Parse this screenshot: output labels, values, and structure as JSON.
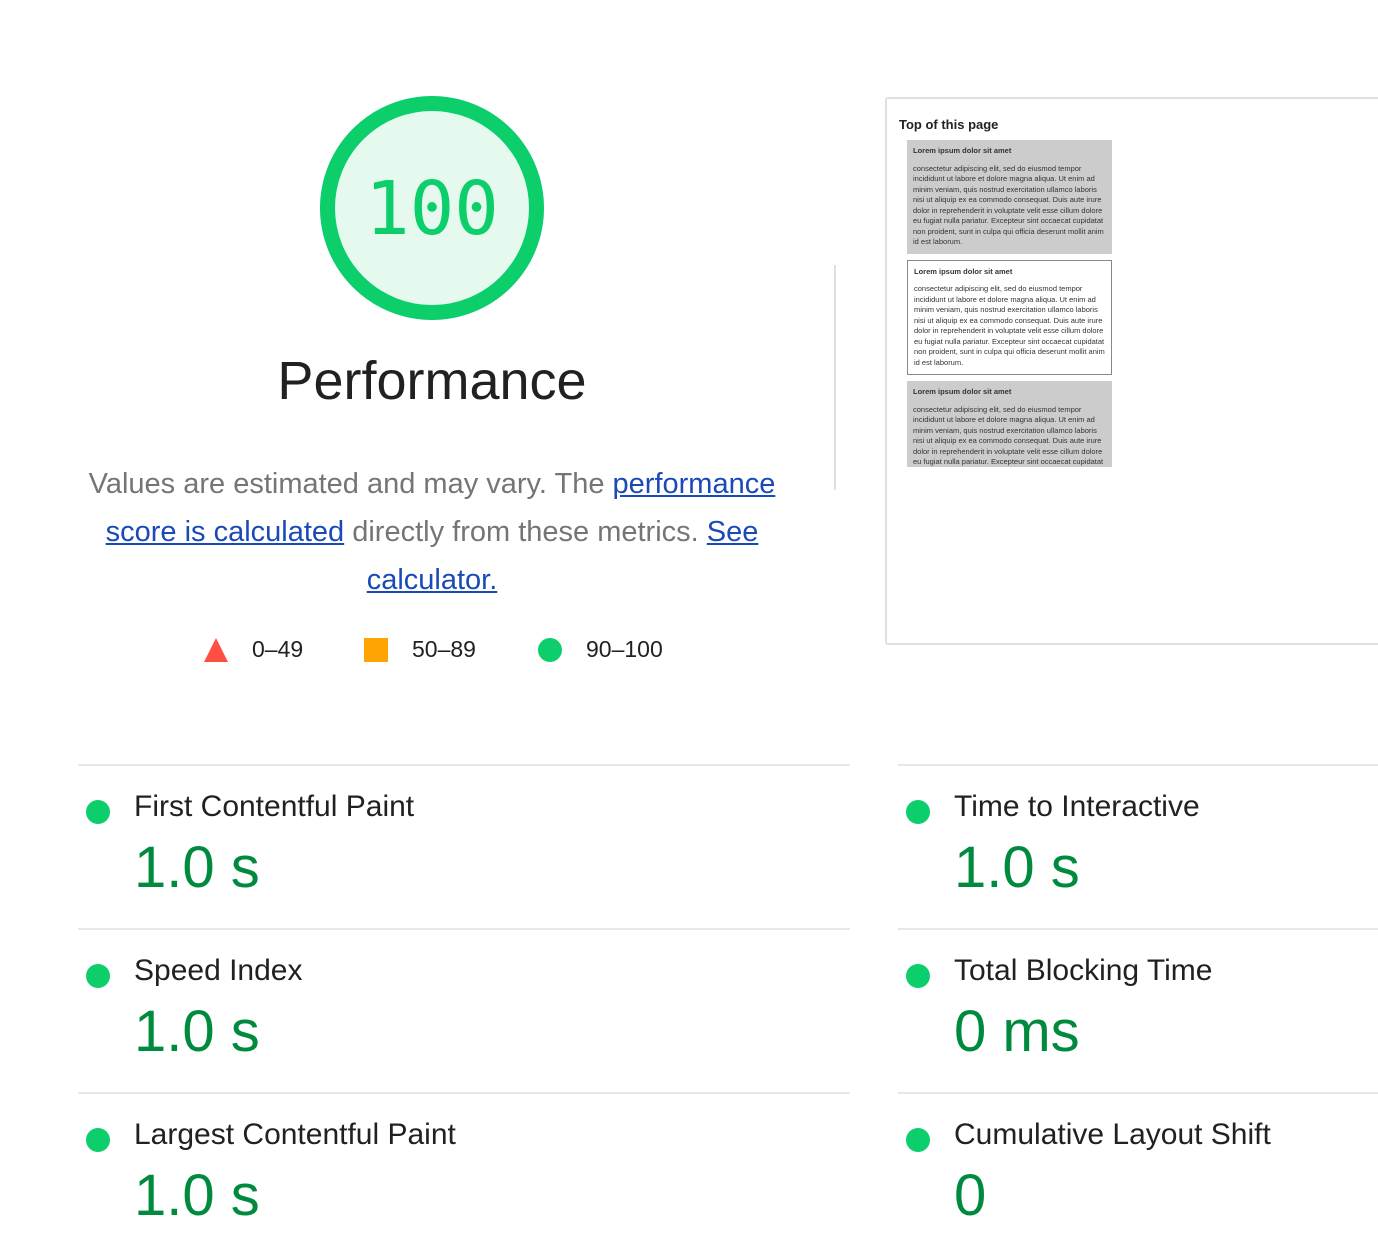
{
  "gauge": {
    "score": "100",
    "title": "Performance",
    "color": "#0cce6b"
  },
  "description": {
    "part1": "Values are estimated and may vary. The ",
    "link1": "performance score is calculated",
    "part2": " directly from these metrics. ",
    "link2": "See calculator."
  },
  "legend": [
    {
      "icon": "triangle-icon",
      "range": "0–49",
      "color": "#ff4e42"
    },
    {
      "icon": "square-icon",
      "range": "50–89",
      "color": "#ffa400"
    },
    {
      "icon": "circle-icon",
      "range": "90–100",
      "color": "#0cce6b"
    }
  ],
  "screenshot": {
    "heading": "Top of this page",
    "block_title": "Lorem ipsum dolor sit amet",
    "block_text": "consectetur adipiscing elit, sed do eiusmod tempor incididunt ut labore et dolore magna aliqua. Ut enim ad minim veniam, quis nostrud exercitation ullamco laboris nisi ut aliquip ex ea commodo consequat. Duis aute irure dolor in reprehenderit in voluptate velit esse cillum dolore eu fugiat nulla pariatur. Excepteur sint occaecat cupidatat non proident, sunt in culpa qui officia deserunt mollit anim id est laborum."
  },
  "metrics": [
    {
      "label": "First Contentful Paint",
      "value": "1.0 s"
    },
    {
      "label": "Time to Interactive",
      "value": "1.0 s"
    },
    {
      "label": "Speed Index",
      "value": "1.0 s"
    },
    {
      "label": "Total Blocking Time",
      "value": "0 ms"
    },
    {
      "label": "Largest Contentful Paint",
      "value": "1.0 s"
    },
    {
      "label": "Cumulative Layout Shift",
      "value": "0"
    }
  ]
}
